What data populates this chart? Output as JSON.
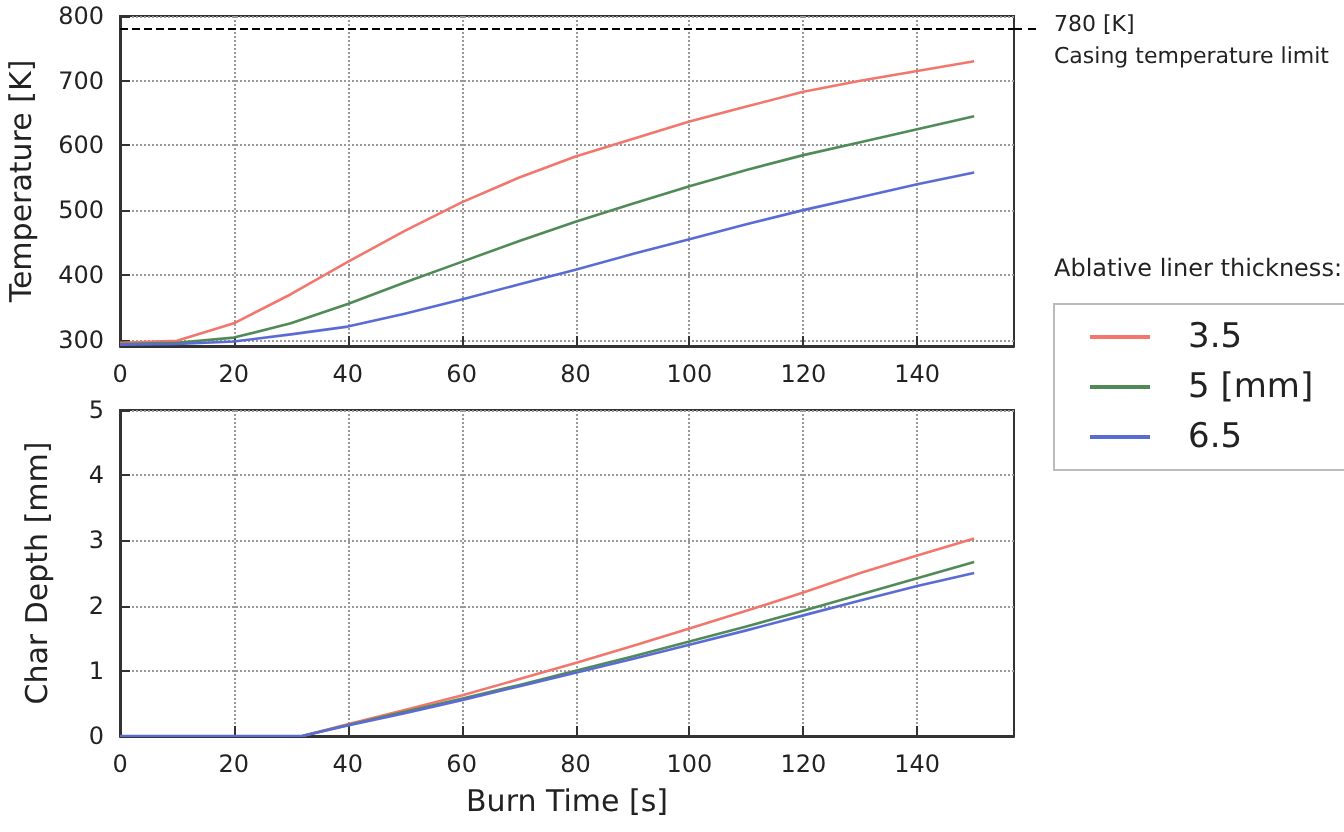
{
  "chart_data": [
    {
      "type": "line",
      "ylabel": "Temperature [K]",
      "legend_title": "Ablative liner thickness:",
      "x": [
        0,
        10,
        20,
        30,
        40,
        50,
        60,
        70,
        80,
        90,
        100,
        110,
        120,
        130,
        140,
        150
      ],
      "series": [
        {
          "name": "3.5",
          "color": "#f2766c",
          "values": [
            295,
            298,
            325,
            370,
            420,
            468,
            512,
            550,
            583,
            610,
            637,
            660,
            683,
            700,
            715,
            730
          ]
        },
        {
          "name": "5 [mm]",
          "color": "#4f8a57",
          "values": [
            293,
            295,
            303,
            325,
            355,
            388,
            420,
            452,
            482,
            510,
            537,
            562,
            585,
            605,
            625,
            645
          ]
        },
        {
          "name": "6.5",
          "color": "#5b6bd6",
          "values": [
            292,
            293,
            297,
            308,
            320,
            340,
            362,
            385,
            408,
            432,
            455,
            478,
            500,
            520,
            540,
            558
          ]
        }
      ],
      "xlim": [
        0,
        157
      ],
      "xticks": [
        0,
        20,
        40,
        60,
        80,
        100,
        120,
        140
      ],
      "ylim": [
        290,
        800
      ],
      "yticks": [
        300,
        400,
        500,
        600,
        700,
        800
      ],
      "ref_lines": [
        {
          "axis": "y",
          "value": 780,
          "label": "780 [K]",
          "color": "#000000",
          "line_style": "dashed"
        }
      ],
      "annotations": [
        "Casing temperature limit"
      ],
      "grid": true,
      "legend": "right",
      "marker": "none",
      "line_style": "solid"
    },
    {
      "type": "line",
      "xlabel": "Burn Time [s]",
      "ylabel": "Char Depth [mm]",
      "x": [
        0,
        10,
        20,
        30,
        32,
        40,
        50,
        60,
        70,
        80,
        90,
        100,
        110,
        120,
        130,
        140,
        150
      ],
      "series": [
        {
          "color": "#f2766c",
          "values": [
            null,
            null,
            null,
            null,
            0,
            0.18,
            0.4,
            0.62,
            0.87,
            1.12,
            1.38,
            1.65,
            1.92,
            2.2,
            2.5,
            2.77,
            3.03
          ]
        },
        {
          "color": "#4f8a57",
          "values": [
            null,
            null,
            null,
            null,
            0,
            0.17,
            0.37,
            0.57,
            0.78,
            1.0,
            1.22,
            1.45,
            1.68,
            1.92,
            2.17,
            2.42,
            2.67
          ]
        },
        {
          "color": "#5b6bd6",
          "values": [
            0,
            0,
            0,
            0,
            0,
            0.16,
            0.35,
            0.55,
            0.76,
            0.97,
            1.18,
            1.4,
            1.62,
            1.85,
            2.08,
            2.3,
            2.5
          ]
        }
      ],
      "xlim": [
        0,
        157
      ],
      "xticks": [
        0,
        20,
        40,
        60,
        80,
        100,
        120,
        140
      ],
      "ylim": [
        0,
        5
      ],
      "yticks": [
        0,
        1,
        2,
        3,
        4,
        5
      ],
      "grid": true,
      "legend": false,
      "marker": "none",
      "line_style": "solid"
    }
  ]
}
